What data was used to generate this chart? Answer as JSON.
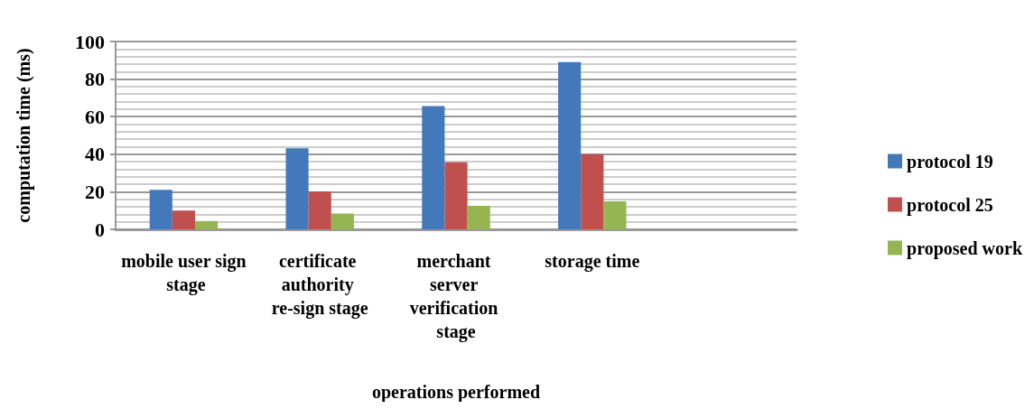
{
  "chart_data": {
    "type": "bar",
    "xlabel": "operations performed",
    "ylabel": "computation time (ms)",
    "categories": [
      "mobile user sign stage",
      "certificate authority re-sign stage",
      "merchant server verification stage",
      "storage time",
      null
    ],
    "series": [
      {
        "name": "protocol 19",
        "color": "#4378bb",
        "values": [
          21,
          43.2,
          65.6,
          89.1,
          null
        ]
      },
      {
        "name": "protocol 25",
        "color": "#c0504d",
        "values": [
          10,
          20.2,
          35.7,
          40,
          null
        ]
      },
      {
        "name": "proposed work",
        "color": "#94b552",
        "values": [
          4.4,
          8.4,
          12.5,
          14.9,
          null
        ]
      }
    ],
    "ylim": [
      0,
      100
    ],
    "yticks": [
      0,
      20,
      40,
      60,
      80,
      100
    ],
    "grid": "y",
    "legend": "right"
  }
}
